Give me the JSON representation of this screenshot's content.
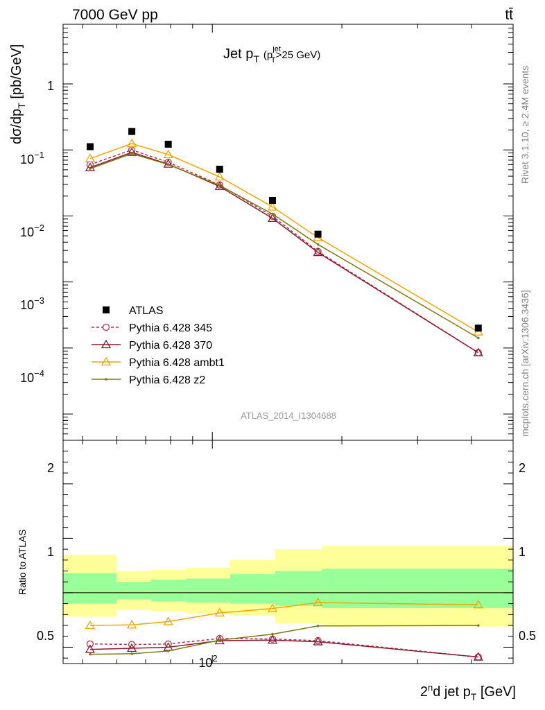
{
  "header": {
    "energy_label": "7000 GeV pp",
    "process_label": "tt̄",
    "title_main": "Jet p",
    "title_sub": "T",
    "title_cut_open": "(p",
    "title_cut_sup": "jet",
    "title_cut_sub": "T",
    "title_cut_close": ">25 GeV)",
    "analysis_id": "ATLAS_2014_I1304688",
    "rivet_note": "Rivet 3.1.10, ≥ 2.4M events",
    "source_note": "mcplots.cern.ch [arXiv:1306.3436]"
  },
  "axes": {
    "ylabel_main": "dσ/dp",
    "ylabel_main_sub": "T",
    "ylabel_main_unit": " [pb/GeV]",
    "ylabel_ratio": "Ratio to ATLAS",
    "xlabel_pre": "2",
    "xlabel_sup": "n",
    "xlabel_mid": "d jet p",
    "xlabel_sub": "T",
    "xlabel_unit": " [GeV]",
    "x_tick_base": "10",
    "x_tick_exp": "2",
    "y_main_ticks": [
      {
        "base": "1",
        "exp": ""
      },
      {
        "base": "10",
        "exp": "−1"
      },
      {
        "base": "10",
        "exp": "−2"
      },
      {
        "base": "10",
        "exp": "−3"
      },
      {
        "base": "10",
        "exp": "−4"
      }
    ],
    "y_ratio_ticks": [
      "2",
      "1",
      "0.5"
    ]
  },
  "chart_data": {
    "type": "line",
    "x_scale": "log",
    "y_scale_main": "log",
    "xlim": [
      45,
      500
    ],
    "ylim_main": [
      4e-06,
      8
    ],
    "ylim_ratio": [
      0.35,
      2.4
    ],
    "bin_edges": [
      45,
      60,
      72,
      87,
      110,
      140,
      180,
      500
    ],
    "x": [
      52,
      65,
      79,
      104,
      138,
      176,
      415
    ],
    "data": {
      "name": "ATLAS",
      "values": [
        0.112,
        0.19,
        0.122,
        0.051,
        0.0172,
        0.0053,
        0.0002
      ]
    },
    "series": [
      {
        "name": "Pythia 6.428 345",
        "color": "#b0304a",
        "marker": "circle",
        "dashed": true,
        "values": [
          0.06,
          0.1,
          0.065,
          0.0295,
          0.0099,
          0.0029,
          8.5e-05
        ],
        "ratio": [
          0.53,
          0.525,
          0.53,
          0.58,
          0.575,
          0.56,
          0.41
        ]
      },
      {
        "name": "Pythia 6.428 370",
        "color": "#8b1a2e",
        "marker": "triangle",
        "dashed": false,
        "values": [
          0.054,
          0.092,
          0.061,
          0.028,
          0.0092,
          0.0028,
          8.5e-05
        ],
        "ratio": [
          0.48,
          0.49,
          0.5,
          0.56,
          0.565,
          0.55,
          0.41
        ]
      },
      {
        "name": "Pythia 6.428 ambt1",
        "color": "#f0a500",
        "marker": "triangle",
        "dashed": false,
        "values": [
          0.074,
          0.125,
          0.085,
          0.039,
          0.0137,
          0.0047,
          0.000175
        ],
        "ratio": [
          0.7,
          0.705,
          0.735,
          0.815,
          0.855,
          0.91,
          0.89
        ]
      },
      {
        "name": "Pythia 6.428 z2",
        "color": "#7a7a10",
        "marker": "dot",
        "dashed": false,
        "values": [
          0.052,
          0.088,
          0.06,
          0.029,
          0.0107,
          0.0037,
          0.000142
        ],
        "ratio": [
          0.435,
          0.44,
          0.465,
          0.565,
          0.62,
          0.695,
          0.7
        ]
      }
    ],
    "band_total": [
      [
        0.78,
        1.35
      ],
      [
        0.84,
        1.2
      ],
      [
        0.83,
        1.21
      ],
      [
        0.81,
        1.23
      ],
      [
        0.79,
        1.3
      ],
      [
        0.72,
        1.4
      ],
      [
        0.69,
        1.43
      ]
    ],
    "band_stat": [
      [
        0.9,
        1.18
      ],
      [
        0.94,
        1.1
      ],
      [
        0.92,
        1.12
      ],
      [
        0.91,
        1.13
      ],
      [
        0.9,
        1.17
      ],
      [
        0.88,
        1.2
      ],
      [
        0.86,
        1.22
      ]
    ],
    "colors": {
      "band_total": "#ffff99",
      "band_stat": "#99ff99",
      "data": "#000000"
    }
  }
}
